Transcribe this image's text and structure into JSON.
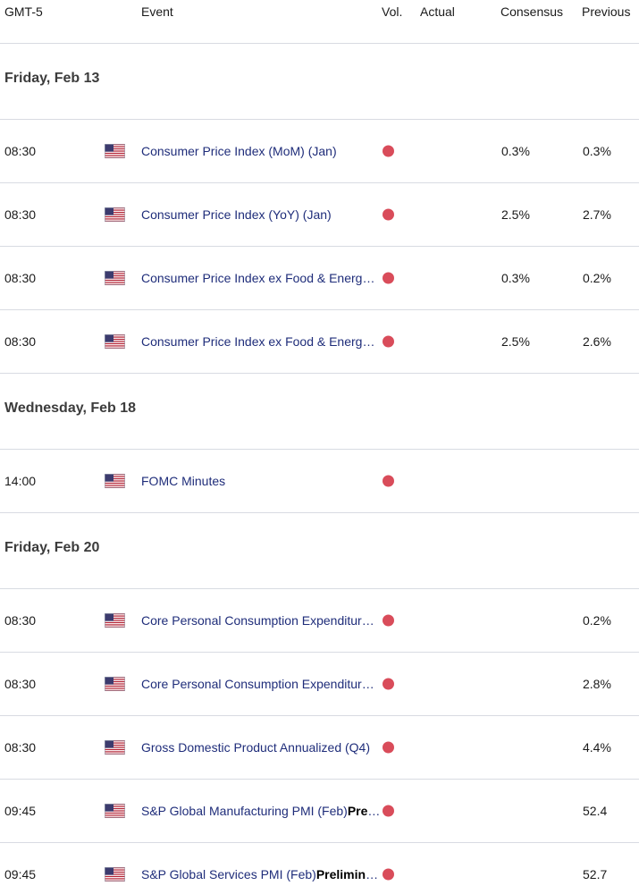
{
  "header": {
    "timezone": "GMT-5",
    "event": "Event",
    "vol": "Vol.",
    "actual": "Actual",
    "consensus": "Consensus",
    "previous": "Previous"
  },
  "colors": {
    "volatility_high": "#d94c5a",
    "event_text": "#1f2d7a"
  },
  "groups": [
    {
      "day": "Friday, Feb 13",
      "events": [
        {
          "time": "08:30",
          "country": "us-flag-icon",
          "name": "Consumer Price Index (MoM) (Jan)",
          "bold": "",
          "actual": "",
          "consensus": "0.3%",
          "previous": "0.3%"
        },
        {
          "time": "08:30",
          "country": "us-flag-icon",
          "name": "Consumer Price Index (YoY) (Jan)",
          "bold": "",
          "actual": "",
          "consensus": "2.5%",
          "previous": "2.7%"
        },
        {
          "time": "08:30",
          "country": "us-flag-icon",
          "name": "Consumer Price Index ex Food & Energy (MoM) (Jan)",
          "bold": "",
          "actual": "",
          "consensus": "0.3%",
          "previous": "0.2%"
        },
        {
          "time": "08:30",
          "country": "us-flag-icon",
          "name": "Consumer Price Index ex Food & Energy (YoY) (Jan)",
          "bold": "",
          "actual": "",
          "consensus": "2.5%",
          "previous": "2.6%"
        }
      ]
    },
    {
      "day": "Wednesday, Feb 18",
      "events": [
        {
          "time": "14:00",
          "country": "us-flag-icon",
          "name": "FOMC Minutes",
          "bold": "",
          "actual": "",
          "consensus": "",
          "previous": ""
        }
      ]
    },
    {
      "day": "Friday, Feb 20",
      "events": [
        {
          "time": "08:30",
          "country": "us-flag-icon",
          "name": "Core Personal Consumption Expenditures - Price Index (MoM)",
          "bold": "",
          "actual": "",
          "consensus": "",
          "previous": "0.2%"
        },
        {
          "time": "08:30",
          "country": "us-flag-icon",
          "name": "Core Personal Consumption Expenditures - Price Index (YoY)",
          "bold": "",
          "actual": "",
          "consensus": "",
          "previous": "2.8%"
        },
        {
          "time": "08:30",
          "country": "us-flag-icon",
          "name": "Gross Domestic Product Annualized (Q4)",
          "bold": "",
          "actual": "",
          "consensus": "",
          "previous": "4.4%"
        },
        {
          "time": "09:45",
          "country": "us-flag-icon",
          "name": "S&P Global Manufacturing PMI (Feb)",
          "bold": "Preliminary",
          "actual": "",
          "consensus": "",
          "previous": "52.4"
        },
        {
          "time": "09:45",
          "country": "us-flag-icon",
          "name": "S&P Global Services PMI (Feb)",
          "bold": "Preliminary",
          "actual": "",
          "consensus": "",
          "previous": "52.7"
        }
      ]
    }
  ]
}
